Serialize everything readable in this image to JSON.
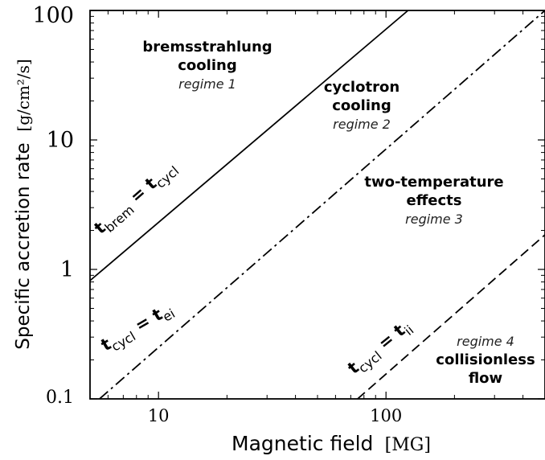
{
  "chart_data": {
    "type": "line",
    "xscale": "log",
    "yscale": "log",
    "xlim": [
      5,
      500
    ],
    "ylim": [
      0.1,
      100
    ],
    "xlabel": "Magnetic field",
    "xlabel_unit": "[MG]",
    "ylabel": "Specific accretion rate",
    "ylabel_unit": "[g/cm²/s]",
    "x_ticks": [
      {
        "value": 10,
        "label": "10"
      },
      {
        "value": 100,
        "label": "100"
      }
    ],
    "y_ticks": [
      {
        "value": 0.1,
        "label": "0.1"
      },
      {
        "value": 1,
        "label": "1"
      },
      {
        "value": 10,
        "label": "10"
      },
      {
        "value": 100,
        "label": "100"
      }
    ],
    "grid": false,
    "series": [
      {
        "style": "solid",
        "color": "#000000",
        "x": [
          5,
          125
        ],
        "y": [
          0.82,
          100
        ],
        "label": [
          "t",
          "brem",
          " = ",
          "t",
          "cycl"
        ]
      },
      {
        "style": "dashdot",
        "color": "#000000",
        "x": [
          5.5,
          500
        ],
        "y": [
          0.1,
          100
        ],
        "label": [
          "t",
          "cycl",
          " = ",
          "t",
          "ei"
        ]
      },
      {
        "style": "dashed",
        "color": "#000000",
        "x": [
          75,
          500
        ],
        "y": [
          0.1,
          1.85
        ],
        "label": [
          "t",
          "cycl",
          " = ",
          "t",
          "ii"
        ]
      }
    ],
    "annotations": [
      {
        "name": "regime-1",
        "lines": [
          "bremsstrahlung",
          "cooling"
        ],
        "italic": "regime 1"
      },
      {
        "name": "regime-2",
        "lines": [
          "cyclotron",
          "cooling"
        ],
        "italic": "regime 2"
      },
      {
        "name": "regime-3",
        "lines": [
          "two-temperature",
          "effects"
        ],
        "italic": "regime 3"
      },
      {
        "name": "regime-4",
        "lines": [
          "collisionless",
          "flow"
        ],
        "italic": "regime 4"
      }
    ]
  }
}
